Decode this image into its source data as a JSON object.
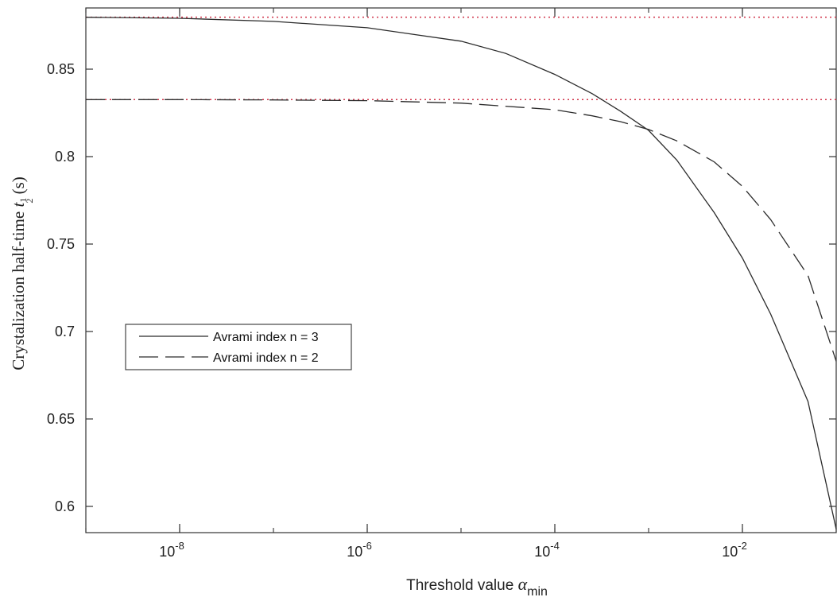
{
  "chart_data": {
    "type": "line",
    "title": "",
    "xlabel": "Threshold value α_min",
    "xlabel_parts": {
      "text": "Threshold value ",
      "symbol": "α",
      "subscript": "min"
    },
    "ylabel": "Crystalization half-time t_(1/2) (s)",
    "ylabel_parts": {
      "text": "Crystalization half-time ",
      "symbol": "t",
      "subscript_num": "1",
      "subscript_den": "2",
      "unit": " (s)"
    },
    "x_scale": "log",
    "xlim": [
      1e-09,
      0.1
    ],
    "ylim": [
      0.585,
      0.885
    ],
    "x_ticks": [
      {
        "value": 1e-08,
        "base": "10",
        "exp": "-8"
      },
      {
        "value": 1e-06,
        "base": "10",
        "exp": "-6"
      },
      {
        "value": 0.0001,
        "base": "10",
        "exp": "-4"
      },
      {
        "value": 0.01,
        "base": "10",
        "exp": "-2"
      }
    ],
    "y_ticks": [
      {
        "value": 0.6,
        "label": "0.6"
      },
      {
        "value": 0.65,
        "label": "0.65"
      },
      {
        "value": 0.7,
        "label": "0.7"
      },
      {
        "value": 0.75,
        "label": "0.75"
      },
      {
        "value": 0.8,
        "label": "0.8"
      },
      {
        "value": 0.85,
        "label": "0.85"
      }
    ],
    "grid": false,
    "legend_position": "center-left",
    "series": [
      {
        "name": "Avrami index n = 3",
        "style": "solid",
        "color": "#2b2b2b",
        "x": [
          1e-09,
          1e-08,
          1e-07,
          1e-06,
          1e-05,
          3e-05,
          0.0001,
          0.00025,
          0.0005,
          0.001,
          0.002,
          0.005,
          0.01,
          0.02,
          0.05,
          0.1
        ],
        "y": [
          0.8797,
          0.8791,
          0.8773,
          0.8737,
          0.866,
          0.859,
          0.847,
          0.836,
          0.826,
          0.815,
          0.798,
          0.768,
          0.742,
          0.71,
          0.66,
          0.587
        ]
      },
      {
        "name": "Avrami index n = 2",
        "style": "dashed",
        "color": "#2b2b2b",
        "x": [
          1e-09,
          1e-08,
          1e-07,
          1e-06,
          1e-05,
          0.0001,
          0.00025,
          0.0005,
          0.001,
          0.002,
          0.005,
          0.01,
          0.02,
          0.05,
          0.1
        ],
        "y": [
          0.8326,
          0.8326,
          0.8324,
          0.832,
          0.8306,
          0.8268,
          0.8233,
          0.82,
          0.8155,
          0.809,
          0.797,
          0.783,
          0.764,
          0.732,
          0.683
        ]
      }
    ],
    "reference_lines": [
      {
        "y": 0.8797,
        "style": "dotted",
        "color": "#d0334a"
      },
      {
        "y": 0.8326,
        "style": "dotted",
        "color": "#d0334a"
      }
    ]
  }
}
